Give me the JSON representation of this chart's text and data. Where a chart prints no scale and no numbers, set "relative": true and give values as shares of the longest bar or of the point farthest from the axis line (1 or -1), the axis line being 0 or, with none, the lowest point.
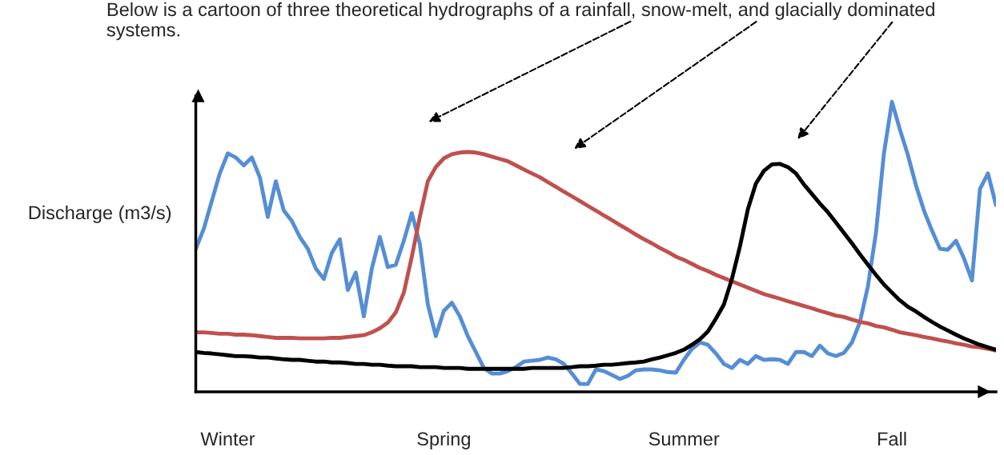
{
  "chart_data": {
    "type": "line",
    "relative": true,
    "ylabel": "Discharge (m3/s)",
    "annotations": [
      "Below is a cartoon of three theoretical hydrographs of a rainfall, snow-melt, and glacially dominated systems."
    ],
    "categories": [
      null,
      null,
      null,
      null,
      "Winter",
      null,
      null,
      null,
      null,
      null,
      null,
      null,
      null,
      null,
      null,
      null,
      null,
      null,
      null,
      null,
      null,
      null,
      null,
      null,
      null,
      null,
      null,
      null,
      null,
      null,
      null,
      "Spring",
      null,
      null,
      null,
      null,
      null,
      null,
      null,
      null,
      null,
      null,
      null,
      null,
      null,
      null,
      null,
      null,
      null,
      null,
      null,
      null,
      null,
      null,
      null,
      null,
      null,
      null,
      null,
      null,
      null,
      "Summer",
      null,
      null,
      null,
      null,
      null,
      null,
      null,
      null,
      null,
      null,
      null,
      null,
      null,
      null,
      null,
      null,
      null,
      null,
      null,
      null,
      null,
      null,
      null,
      null,
      null,
      "Fall",
      null,
      null,
      null,
      null,
      null,
      null,
      null,
      null,
      null,
      null,
      null,
      null,
      null
    ],
    "legend": false,
    "grid": false,
    "marker": "none",
    "line_style": "solid",
    "series": [
      {
        "color": "#558ed5",
        "values": [
          0.493,
          0.562,
          0.658,
          0.753,
          0.822,
          0.808,
          0.781,
          0.808,
          0.74,
          0.603,
          0.726,
          0.625,
          0.589,
          0.534,
          0.493,
          0.425,
          0.389,
          0.479,
          0.526,
          0.351,
          0.411,
          0.26,
          0.425,
          0.534,
          0.43,
          0.438,
          0.521,
          0.616,
          0.51,
          0.301,
          0.192,
          0.279,
          0.307,
          0.26,
          0.192,
          0.137,
          0.082,
          0.063,
          0.063,
          0.071,
          0.085,
          0.104,
          0.107,
          0.11,
          0.118,
          0.112,
          0.096,
          0.063,
          0.027,
          0.027,
          0.077,
          0.071,
          0.058,
          0.044,
          0.055,
          0.074,
          0.077,
          0.077,
          0.074,
          0.068,
          0.066,
          0.11,
          0.148,
          0.17,
          0.162,
          0.132,
          0.096,
          0.082,
          0.11,
          0.096,
          0.123,
          0.11,
          0.112,
          0.11,
          0.096,
          0.137,
          0.137,
          0.123,
          0.159,
          0.132,
          0.123,
          0.134,
          0.17,
          0.241,
          0.364,
          0.548,
          0.822,
          1,
          0.904,
          0.816,
          0.712,
          0.625,
          0.556,
          0.493,
          0.49,
          0.521,
          0.46,
          0.384,
          0.699,
          0.753,
          0.644
        ]
      },
      {
        "color": "#c0504d",
        "values": [
          0.205,
          0.205,
          0.203,
          0.2,
          0.2,
          0.197,
          0.197,
          0.195,
          0.192,
          0.189,
          0.186,
          0.186,
          0.186,
          0.184,
          0.184,
          0.184,
          0.184,
          0.186,
          0.186,
          0.189,
          0.192,
          0.195,
          0.205,
          0.219,
          0.238,
          0.274,
          0.342,
          0.466,
          0.603,
          0.726,
          0.775,
          0.805,
          0.819,
          0.825,
          0.827,
          0.825,
          0.819,
          0.811,
          0.803,
          0.795,
          0.781,
          0.767,
          0.753,
          0.74,
          0.723,
          0.707,
          0.69,
          0.674,
          0.658,
          0.641,
          0.625,
          0.608,
          0.592,
          0.575,
          0.559,
          0.542,
          0.526,
          0.512,
          0.496,
          0.482,
          0.466,
          0.455,
          0.441,
          0.427,
          0.416,
          0.403,
          0.392,
          0.381,
          0.37,
          0.359,
          0.348,
          0.337,
          0.329,
          0.321,
          0.312,
          0.304,
          0.296,
          0.288,
          0.279,
          0.271,
          0.263,
          0.258,
          0.249,
          0.241,
          0.236,
          0.227,
          0.222,
          0.214,
          0.205,
          0.2,
          0.195,
          0.189,
          0.184,
          0.178,
          0.173,
          0.167,
          0.162,
          0.156,
          0.153,
          0.148,
          0.142
        ]
      },
      {
        "color": "#000000",
        "values": [
          0.137,
          0.134,
          0.132,
          0.129,
          0.126,
          0.123,
          0.123,
          0.121,
          0.118,
          0.118,
          0.115,
          0.112,
          0.11,
          0.11,
          0.107,
          0.104,
          0.104,
          0.101,
          0.101,
          0.099,
          0.096,
          0.096,
          0.093,
          0.093,
          0.09,
          0.088,
          0.088,
          0.088,
          0.085,
          0.085,
          0.085,
          0.082,
          0.082,
          0.082,
          0.079,
          0.079,
          0.079,
          0.079,
          0.079,
          0.079,
          0.079,
          0.079,
          0.082,
          0.082,
          0.082,
          0.082,
          0.082,
          0.085,
          0.088,
          0.088,
          0.09,
          0.093,
          0.093,
          0.096,
          0.099,
          0.101,
          0.104,
          0.112,
          0.118,
          0.126,
          0.134,
          0.145,
          0.162,
          0.181,
          0.208,
          0.252,
          0.301,
          0.389,
          0.501,
          0.63,
          0.718,
          0.762,
          0.784,
          0.786,
          0.775,
          0.753,
          0.715,
          0.682,
          0.649,
          0.619,
          0.584,
          0.548,
          0.512,
          0.474,
          0.438,
          0.403,
          0.37,
          0.342,
          0.315,
          0.293,
          0.277,
          0.258,
          0.241,
          0.225,
          0.211,
          0.197,
          0.184,
          0.173,
          0.162,
          0.153,
          0.145
        ]
      }
    ]
  }
}
